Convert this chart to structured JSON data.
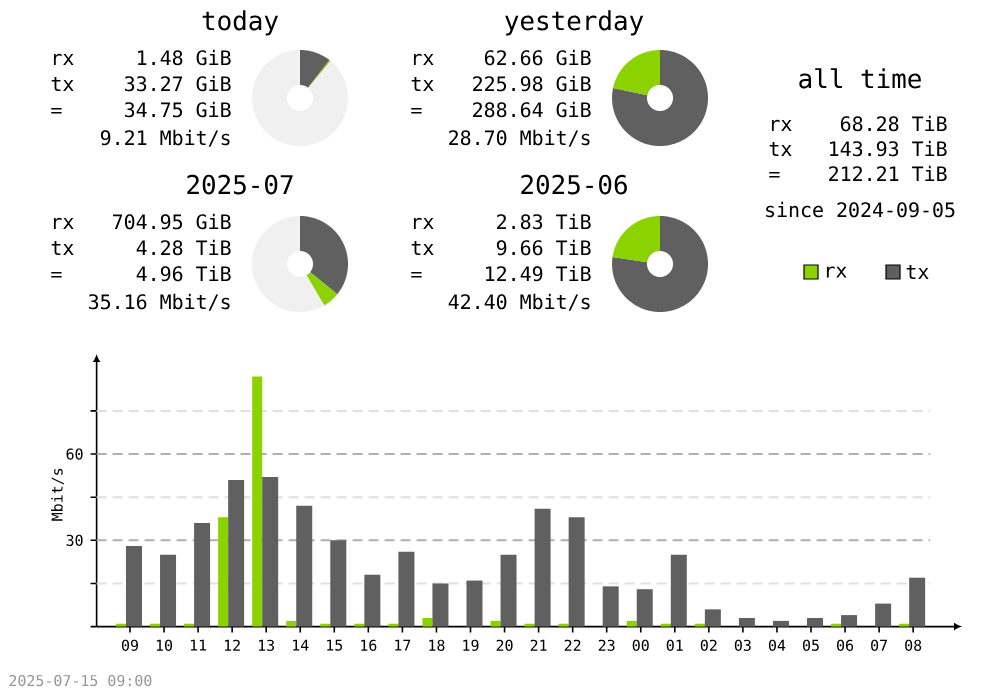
{
  "chart_data": [
    {
      "type": "donut",
      "title": "today",
      "categories": [
        null,
        null,
        null
      ],
      "values": [
        10.5,
        0.5,
        89
      ],
      "colors": [
        "#606060",
        "#8cd200",
        "#f0f0f0"
      ],
      "annotations": [
        "rx",
        "1.48 GiB",
        "tx",
        "33.27 GiB",
        "=",
        "34.75 GiB",
        "9.21 Mbit/s"
      ]
    },
    {
      "type": "donut",
      "title": "yesterday",
      "categories": [
        null,
        null
      ],
      "values": [
        78.3,
        21.7
      ],
      "colors": [
        "#606060",
        "#8cd200"
      ],
      "annotations": [
        "rx",
        "62.66 GiB",
        "tx",
        "225.98 GiB",
        "=",
        "288.64 GiB",
        "28.70 Mbit/s"
      ]
    },
    {
      "type": "other",
      "title": "all time",
      "annotations": [
        "rx",
        "68.28 TiB",
        "tx",
        "143.93 TiB",
        "=",
        "212.21 TiB",
        "since 2024-09-05"
      ]
    },
    {
      "type": "donut",
      "title": "2025-07",
      "categories": [
        null,
        null,
        null
      ],
      "values": [
        35.8,
        5.8,
        58.4
      ],
      "colors": [
        "#606060",
        "#8cd200",
        "#f0f0f0"
      ],
      "annotations": [
        "rx",
        "704.95 GiB",
        "tx",
        "4.28 TiB",
        "=",
        "4.96 TiB",
        "35.16 Mbit/s"
      ]
    },
    {
      "type": "donut",
      "title": "2025-06",
      "categories": [
        null,
        null
      ],
      "values": [
        77.3,
        22.7
      ],
      "colors": [
        "#606060",
        "#8cd200"
      ],
      "annotations": [
        "rx",
        "2.83 TiB",
        "tx",
        "9.66 TiB",
        "=",
        "12.49 TiB",
        "42.40 Mbit/s"
      ]
    },
    {
      "type": "bar",
      "ylabel": "Mbit/s",
      "categories": [
        "09",
        "10",
        "11",
        "12",
        "13",
        "14",
        "15",
        "16",
        "17",
        "18",
        "19",
        "20",
        "21",
        "22",
        "23",
        "00",
        "01",
        "02",
        "03",
        "04",
        "05",
        "06",
        "07",
        "08"
      ],
      "series": [
        {
          "name": "rx",
          "color": "#8cd200",
          "values": [
            1,
            1,
            1,
            38,
            87,
            2,
            1,
            1,
            1,
            3,
            0,
            2,
            1,
            1,
            0,
            2,
            1,
            1,
            0,
            0,
            0,
            1,
            0,
            1
          ]
        },
        {
          "name": "tx",
          "color": "#606060",
          "values": [
            28,
            25,
            36,
            51,
            52,
            42,
            30,
            18,
            26,
            15,
            16,
            25,
            41,
            38,
            14,
            13,
            25,
            6,
            3,
            2,
            3,
            4,
            8,
            17
          ]
        }
      ],
      "ylim": [
        0,
        92
      ],
      "yticks": [
        {
          "value": 0,
          "label": null
        },
        {
          "value": 15,
          "label": null
        },
        30,
        {
          "value": 45,
          "label": null
        },
        60,
        {
          "value": 75,
          "label": null
        }
      ],
      "grid": "y",
      "legend": "top right",
      "annotations": [
        "2025-07-15 09:00"
      ]
    }
  ]
}
